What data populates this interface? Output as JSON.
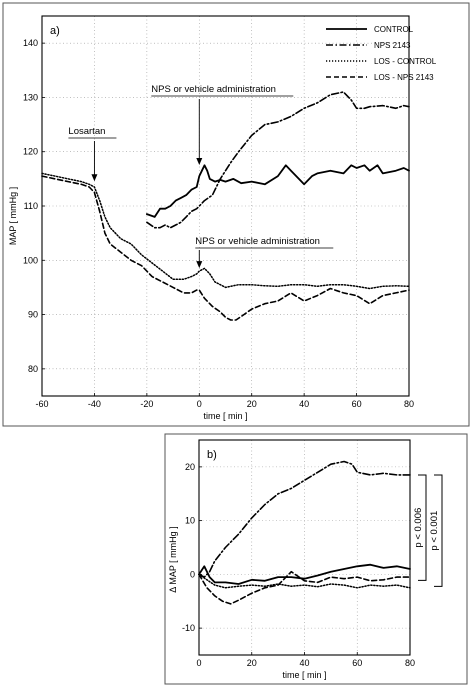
{
  "chart_data": [
    {
      "type": "line",
      "panel_label": "a)",
      "xlabel": "time  [ min ]",
      "ylabel": "MAP  [ mmHg ]",
      "xlim": [
        -60,
        80
      ],
      "ylim": [
        75,
        145
      ],
      "xticks": [
        -60,
        -40,
        -20,
        0,
        20,
        40,
        60,
        80
      ],
      "yticks": [
        80,
        90,
        100,
        110,
        120,
        130,
        140
      ],
      "grid": true,
      "legend_position": "top-right",
      "annotations": [
        {
          "text": "Losartan",
          "arrow_x": -40,
          "arrow_to_y": 114
        },
        {
          "text": "NPS or vehicle administration",
          "arrow_x": 0,
          "arrow_to_y": 117
        },
        {
          "text": "NPS or vehicle administration",
          "arrow_x": 0,
          "arrow_to_y": 98
        }
      ],
      "series": [
        {
          "name": "CONTROL",
          "style": "solid",
          "x": [
            -20,
            -17,
            -15,
            -13,
            -11,
            -9,
            -7,
            -5,
            -3,
            -1,
            0,
            1,
            2,
            3,
            4,
            6,
            8,
            10,
            13,
            16,
            20,
            25,
            30,
            33,
            35,
            38,
            40,
            43,
            45,
            50,
            55,
            58,
            60,
            63,
            65,
            68,
            70,
            75,
            78,
            80
          ],
          "y": [
            108.5,
            108,
            109.5,
            109.5,
            110,
            111,
            111.5,
            112,
            113,
            113.5,
            115.5,
            116.5,
            117.5,
            116.5,
            115,
            114.5,
            114.8,
            114.5,
            115,
            114.2,
            114.5,
            114,
            115.5,
            117.5,
            116.5,
            115,
            114,
            115.5,
            116,
            116.5,
            116,
            117.5,
            117,
            117.5,
            116.5,
            117.5,
            116,
            116.5,
            117,
            116.5
          ]
        },
        {
          "name": "NPS 2143",
          "style": "dashdot",
          "x": [
            -20,
            -17,
            -15,
            -13,
            -11,
            -9,
            -7,
            -5,
            -3,
            -1,
            0,
            2,
            5,
            8,
            12,
            15,
            20,
            25,
            30,
            35,
            40,
            45,
            50,
            55,
            58,
            60,
            63,
            65,
            70,
            75,
            78,
            80
          ],
          "y": [
            107,
            106,
            106,
            106.5,
            106,
            106.5,
            107,
            108,
            109,
            109.5,
            110,
            111,
            112,
            115,
            118,
            120,
            123,
            125,
            125.5,
            126.5,
            128,
            129,
            130.5,
            131,
            129.5,
            128,
            128,
            128.3,
            128.5,
            128,
            128.5,
            128.3
          ]
        },
        {
          "name": "LOS - CONTROL",
          "style": "dotted",
          "x": [
            -60,
            -55,
            -50,
            -45,
            -42,
            -40,
            -38,
            -36,
            -34,
            -30,
            -26,
            -22,
            -18,
            -14,
            -10,
            -6,
            -3,
            -1,
            0,
            2,
            4,
            6,
            8,
            10,
            15,
            20,
            25,
            30,
            35,
            40,
            45,
            50,
            55,
            60,
            65,
            70,
            75,
            80
          ],
          "y": [
            116,
            115.5,
            115,
            114.5,
            114,
            113.5,
            111,
            108,
            106,
            104,
            103,
            101,
            99.5,
            98,
            96.5,
            96.5,
            97,
            97.5,
            98,
            98.5,
            97.5,
            96,
            95.5,
            95,
            95.5,
            95.5,
            95.3,
            95.2,
            95.5,
            95.5,
            95.2,
            95.5,
            95.5,
            95.2,
            94.8,
            95.2,
            95.3,
            95.2
          ]
        },
        {
          "name": "LOS - NPS 2143",
          "style": "dashed",
          "x": [
            -60,
            -55,
            -50,
            -45,
            -42,
            -40,
            -38,
            -36,
            -34,
            -30,
            -26,
            -22,
            -18,
            -14,
            -10,
            -6,
            -3,
            -1,
            0,
            2,
            5,
            8,
            10,
            12,
            14,
            17,
            20,
            25,
            30,
            35,
            40,
            45,
            50,
            55,
            60,
            65,
            70,
            75,
            80
          ],
          "y": [
            115.5,
            115,
            114.5,
            114,
            113.5,
            112.5,
            109,
            105,
            103,
            101.5,
            100,
            99,
            97,
            96,
            95,
            94,
            94,
            94.5,
            94.5,
            93,
            91.5,
            90.5,
            89.5,
            89,
            89,
            90,
            91,
            92,
            92.5,
            94,
            92.5,
            93.5,
            94.8,
            94,
            93.5,
            92,
            93.5,
            94,
            94.5
          ]
        }
      ]
    },
    {
      "type": "line",
      "panel_label": "b)",
      "xlabel": "time  [ min ]",
      "ylabel": "Δ MAP  [ mmHg ]",
      "xlim": [
        0,
        80
      ],
      "ylim": [
        -15,
        25
      ],
      "xticks": [
        0,
        20,
        40,
        60,
        80
      ],
      "yticks": [
        -10,
        0,
        10,
        20
      ],
      "grid": true,
      "significance": [
        {
          "text": "p < 0.006",
          "from_y": 0,
          "to_y": 18.5
        },
        {
          "text": "p < 0.001",
          "from_y": 0,
          "to_y": 18.5
        }
      ],
      "series": [
        {
          "name": "CONTROL",
          "style": "solid",
          "x": [
            0,
            2,
            4,
            6,
            10,
            15,
            20,
            25,
            30,
            35,
            40,
            45,
            50,
            55,
            60,
            65,
            70,
            75,
            80
          ],
          "y": [
            0,
            1.5,
            -0.5,
            -1.5,
            -1.5,
            -1.8,
            -1,
            -1.2,
            -0.5,
            -0.5,
            -0.8,
            -0.2,
            0.5,
            1,
            1.5,
            1.8,
            1.2,
            1.5,
            1
          ]
        },
        {
          "name": "NPS 2143",
          "style": "dashdot",
          "x": [
            0,
            2,
            4,
            6,
            10,
            15,
            20,
            25,
            30,
            35,
            40,
            45,
            50,
            55,
            58,
            60,
            65,
            70,
            75,
            80
          ],
          "y": [
            0,
            -0.5,
            0.5,
            2.5,
            5,
            7.5,
            10.5,
            13,
            15,
            16,
            17.5,
            19,
            20.5,
            21,
            20.5,
            19,
            18.5,
            18.8,
            18.5,
            18.5
          ]
        },
        {
          "name": "LOS - CONTROL",
          "style": "dotted",
          "x": [
            0,
            3,
            6,
            10,
            15,
            20,
            25,
            30,
            35,
            40,
            45,
            50,
            55,
            60,
            65,
            70,
            75,
            80
          ],
          "y": [
            0,
            -1,
            -2,
            -2.5,
            -2.2,
            -2,
            -2.2,
            -1.8,
            -2.2,
            -2,
            -2.3,
            -1.8,
            -2,
            -2.5,
            -2,
            -2.2,
            -2,
            -2.5
          ]
        },
        {
          "name": "LOS - NPS 2143",
          "style": "dashed",
          "x": [
            0,
            3,
            6,
            9,
            12,
            15,
            20,
            25,
            30,
            35,
            40,
            45,
            50,
            55,
            60,
            65,
            70,
            75,
            80
          ],
          "y": [
            0,
            -2.5,
            -4,
            -5,
            -5.5,
            -4.8,
            -3.5,
            -2.5,
            -2,
            0.5,
            -1.2,
            -1.5,
            -0.5,
            -0.8,
            -0.5,
            -1.2,
            -1,
            -0.5,
            -0.5
          ]
        }
      ]
    }
  ]
}
